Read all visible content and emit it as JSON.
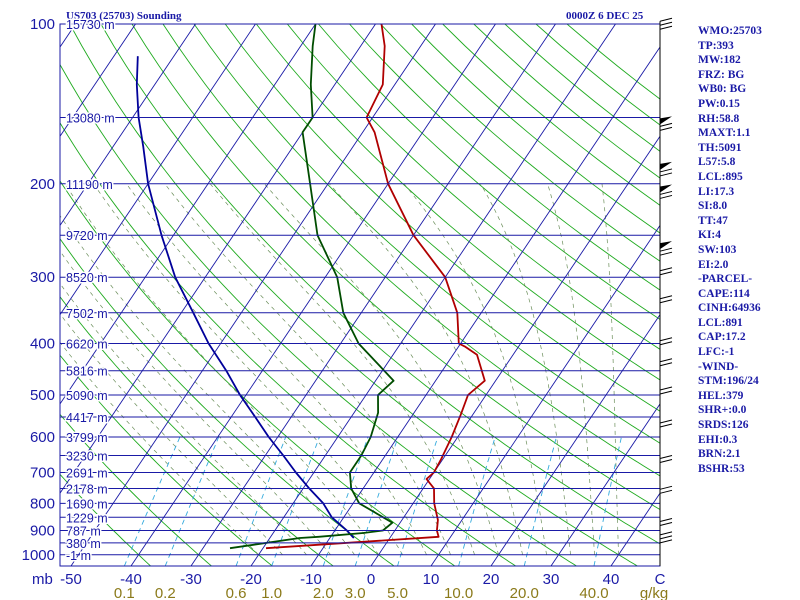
{
  "header": {
    "station_title": "US703 (25703) Sounding",
    "time_label": "0000Z  6 DEC 25"
  },
  "colors": {
    "frame": "#1a1aa6",
    "isobar": "#1a1aa6",
    "isotherm": "#1a1aa6",
    "dry_adiabat": "#1faa1f",
    "moist_adiabat": "#6b8e5a",
    "mixing_ratio": "#33aadd",
    "temperature": "#b00000",
    "dewpoint": "#004d00",
    "parcel": "#00009a",
    "axis_text": "#1a1aa6",
    "mixing_text": "#8b7a1a"
  },
  "chart_data": {
    "type": "skew-t",
    "title": "US703 (25703) Sounding",
    "xlabel": "C",
    "ylabel": "mb",
    "pressure_ticks": [
      "100",
      "200",
      "300",
      "400",
      "500",
      "600",
      "700",
      "800",
      "900",
      "1000"
    ],
    "temperature_ticks": [
      "-50",
      "-40",
      "-30",
      "-20",
      "-10",
      "0",
      "10",
      "20",
      "30",
      "40"
    ],
    "mixing_ratio_ticks": [
      "0.1",
      "0.2",
      "0.6",
      "1.0",
      "2.0",
      "3.0",
      "5.0",
      "10.0",
      "20.0",
      "40.0"
    ],
    "mixing_ratio_unit": "g/kg",
    "height_labels": [
      {
        "p": 100,
        "label": "15730 m"
      },
      {
        "p": 150,
        "label": "13080 m"
      },
      {
        "p": 200,
        "label": "11190 m"
      },
      {
        "p": 250,
        "label": "9720 m"
      },
      {
        "p": 300,
        "label": "8520 m"
      },
      {
        "p": 350,
        "label": "7502 m"
      },
      {
        "p": 400,
        "label": "6620 m"
      },
      {
        "p": 450,
        "label": "5816 m"
      },
      {
        "p": 500,
        "label": "5090 m"
      },
      {
        "p": 550,
        "label": "4417 m"
      },
      {
        "p": 600,
        "label": "3799 m"
      },
      {
        "p": 650,
        "label": "3230 m"
      },
      {
        "p": 700,
        "label": "2691 m"
      },
      {
        "p": 750,
        "label": "2178 m"
      },
      {
        "p": 800,
        "label": "1690 m"
      },
      {
        "p": 850,
        "label": "1229 m"
      },
      {
        "p": 900,
        "label": "787 m"
      },
      {
        "p": 950,
        "label": "380 m"
      },
      {
        "p": 1000,
        "label": "-1 m"
      }
    ],
    "temperature_profile": [
      [
        972,
        -19.5
      ],
      [
        925,
        8
      ],
      [
        900,
        7
      ],
      [
        860,
        6
      ],
      [
        800,
        3.5
      ],
      [
        750,
        1.8
      ],
      [
        720,
        -0.5
      ],
      [
        700,
        0
      ],
      [
        660,
        -0.3
      ],
      [
        600,
        -1
      ],
      [
        545,
        -2
      ],
      [
        500,
        -3
      ],
      [
        470,
        -1.8
      ],
      [
        420,
        -6
      ],
      [
        405,
        -9
      ],
      [
        400,
        -10.3
      ],
      [
        350,
        -14
      ],
      [
        300,
        -20
      ],
      [
        250,
        -30
      ],
      [
        200,
        -40
      ],
      [
        160,
        -48
      ],
      [
        150,
        -51
      ],
      [
        130,
        -52
      ],
      [
        110,
        -56
      ],
      [
        100,
        -59
      ]
    ],
    "dewpoint_profile": [
      [
        972,
        -25.5
      ],
      [
        930,
        -15
      ],
      [
        925,
        -12
      ],
      [
        910,
        -5
      ],
      [
        900,
        -2
      ],
      [
        870,
        -1.3
      ],
      [
        800,
        -9
      ],
      [
        750,
        -12
      ],
      [
        700,
        -14
      ],
      [
        650,
        -14
      ],
      [
        600,
        -14.5
      ],
      [
        540,
        -16
      ],
      [
        500,
        -18
      ],
      [
        470,
        -17
      ],
      [
        400,
        -27
      ],
      [
        350,
        -33
      ],
      [
        300,
        -38
      ],
      [
        250,
        -46
      ],
      [
        200,
        -53
      ],
      [
        160,
        -60
      ],
      [
        150,
        -60
      ],
      [
        130,
        -64
      ],
      [
        110,
        -68
      ],
      [
        100,
        -70
      ]
    ],
    "parcel_profile": [
      [
        930,
        -6
      ],
      [
        900,
        -8
      ],
      [
        850,
        -12
      ],
      [
        800,
        -15
      ],
      [
        750,
        -19
      ],
      [
        700,
        -23
      ],
      [
        650,
        -27
      ],
      [
        600,
        -31.5
      ],
      [
        550,
        -36
      ],
      [
        500,
        -41
      ],
      [
        450,
        -46
      ],
      [
        400,
        -52
      ],
      [
        350,
        -58
      ],
      [
        300,
        -65
      ],
      [
        250,
        -72
      ],
      [
        200,
        -80
      ],
      [
        170,
        -85
      ],
      [
        150,
        -89
      ],
      [
        130,
        -93
      ],
      [
        115,
        -96
      ]
    ]
  },
  "indices": [
    "WMO:25703",
    "TP:393",
    "MW:182",
    "FRZ: BG",
    "WB0: BG",
    "PW:0.15",
    "RH:58.8",
    "MAXT:1.1",
    "TH:5091",
    "L57:5.8",
    "LCL:895",
    "LI:17.3",
    "SI:8.0",
    "TT:47",
    "KI:4",
    "SW:103",
    "EI:2.0",
    "-PARCEL-",
    "CAPE:114",
    "CINH:64936",
    "LCL:891",
    "CAP:17.2",
    "LFC:-1",
    "-WIND-",
    "STM:196/24",
    "HEL:379",
    "SHR+:0.0",
    "SRDS:126",
    "EHI:0.3",
    "BRN:2.1",
    "BSHR:53"
  ]
}
